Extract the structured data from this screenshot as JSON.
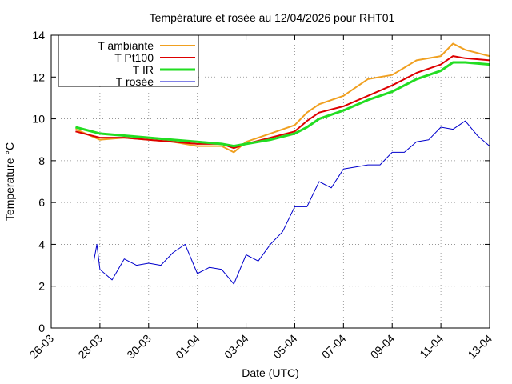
{
  "chart_data": {
    "type": "line",
    "title": "Température et rosée au 12/04/2026 pour RHT01",
    "xlabel": "Date (UTC)",
    "ylabel": "Temperature °C",
    "xlim": [
      "26-03",
      "13-04"
    ],
    "ylim": [
      0,
      14
    ],
    "x_ticks": [
      "26-03",
      "28-03",
      "30-03",
      "01-04",
      "03-04",
      "05-04",
      "07-04",
      "09-04",
      "11-04",
      "13-04"
    ],
    "y_ticks": [
      0,
      2,
      4,
      6,
      8,
      10,
      12,
      14
    ],
    "grid": true,
    "legend_position": "top-left",
    "series": [
      {
        "name": "T ambiante",
        "color": "#f0a020",
        "x": [
          "27-03",
          "28-03",
          "29-03",
          "30-03",
          "31-03",
          "01-04",
          "02-04",
          "02-04 12h",
          "03-04",
          "04-04",
          "05-04",
          "05-04 12h",
          "06-04",
          "07-04",
          "08-04",
          "09-04",
          "10-04",
          "11-04",
          "11-04 12h",
          "12-04",
          "13-04"
        ],
        "y": [
          9.5,
          9.0,
          9.1,
          9.0,
          8.9,
          8.7,
          8.7,
          8.4,
          8.9,
          9.3,
          9.7,
          10.3,
          10.7,
          11.1,
          11.9,
          12.1,
          12.8,
          13.0,
          13.6,
          13.3,
          13.0
        ]
      },
      {
        "name": "T Pt100",
        "color": "#dd0000",
        "x": [
          "27-03",
          "28-03",
          "29-03",
          "30-03",
          "31-03",
          "01-04",
          "02-04",
          "02-04 12h",
          "03-04",
          "04-04",
          "05-04",
          "05-04 12h",
          "06-04",
          "07-04",
          "08-04",
          "09-04",
          "10-04",
          "11-04",
          "11-04 12h",
          "12-04",
          "13-04"
        ],
        "y": [
          9.4,
          9.1,
          9.1,
          9.0,
          8.9,
          8.8,
          8.8,
          8.6,
          8.8,
          9.1,
          9.4,
          9.9,
          10.3,
          10.6,
          11.1,
          11.6,
          12.2,
          12.6,
          13.0,
          12.9,
          12.8
        ]
      },
      {
        "name": "T IR",
        "color": "#22dd22",
        "x": [
          "27-03",
          "28-03",
          "29-03",
          "30-03",
          "31-03",
          "01-04",
          "02-04",
          "02-04 12h",
          "03-04",
          "04-04",
          "05-04",
          "05-04 12h",
          "06-04",
          "07-04",
          "08-04",
          "09-04",
          "10-04",
          "11-04",
          "11-04 12h",
          "12-04",
          "13-04"
        ],
        "y": [
          9.6,
          9.3,
          9.2,
          9.1,
          9.0,
          8.9,
          8.8,
          8.7,
          8.8,
          9.0,
          9.3,
          9.6,
          10.0,
          10.4,
          10.9,
          11.3,
          11.9,
          12.3,
          12.7,
          12.7,
          12.6
        ]
      },
      {
        "name": "T rosée",
        "color": "#0000cc",
        "x": [
          "27-03 18h",
          "27-03 21h",
          "28-03",
          "28-03 12h",
          "29-03",
          "29-03 12h",
          "30-03",
          "30-03 12h",
          "31-03",
          "31-03 12h",
          "01-04",
          "01-04 12h",
          "02-04",
          "02-04 12h",
          "03-04",
          "03-04 12h",
          "04-04",
          "04-04 12h",
          "05-04",
          "05-04 12h",
          "06-04",
          "06-04 12h",
          "07-04",
          "07-04 12h",
          "08-04",
          "08-04 12h",
          "09-04",
          "09-04 12h",
          "10-04",
          "10-04 12h",
          "11-04",
          "11-04 12h",
          "12-04",
          "12-04 12h",
          "13-04"
        ],
        "y": [
          3.2,
          4.0,
          2.8,
          2.3,
          3.3,
          3.0,
          3.1,
          3.0,
          3.6,
          4.0,
          2.6,
          2.9,
          2.8,
          2.1,
          3.5,
          3.2,
          4.0,
          4.6,
          5.8,
          5.8,
          7.0,
          6.7,
          7.6,
          7.7,
          7.8,
          7.8,
          8.4,
          8.4,
          8.9,
          9.0,
          9.6,
          9.5,
          9.9,
          9.2,
          8.7
        ]
      }
    ]
  }
}
